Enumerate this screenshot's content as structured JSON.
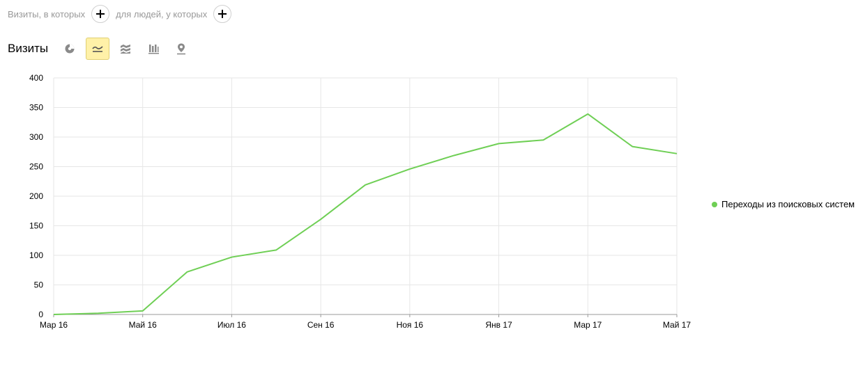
{
  "filters": {
    "visits_label": "Визиты, в которых",
    "people_label": "для людей, у которых"
  },
  "header": {
    "title": "Визиты",
    "views": [
      {
        "name": "pie-icon",
        "active": false
      },
      {
        "name": "line-chart-icon",
        "active": true
      },
      {
        "name": "area-chart-icon",
        "active": false
      },
      {
        "name": "bar-chart-icon",
        "active": false
      },
      {
        "name": "map-icon",
        "active": false
      }
    ]
  },
  "colors": {
    "series": "#6fcf55",
    "grid": "#e6e6e6",
    "active_view_bg": "#fff1a8"
  },
  "chart_data": {
    "type": "line",
    "title": "",
    "xlabel": "",
    "ylabel": "",
    "x": [
      "2016-03",
      "2016-04",
      "2016-05",
      "2016-06",
      "2016-07",
      "2016-08",
      "2016-09",
      "2016-10",
      "2016-11",
      "2016-12",
      "2017-01",
      "2017-02",
      "2017-03",
      "2017-04",
      "2017-05"
    ],
    "x_tick_labels": [
      "Мар 16",
      "Май 16",
      "Июл 16",
      "Сен 16",
      "Ноя 16",
      "Янв 17",
      "Мар 17",
      "Май 17"
    ],
    "ylim": [
      0,
      400
    ],
    "y_ticks": [
      0,
      50,
      100,
      150,
      200,
      250,
      300,
      350,
      400
    ],
    "grid": true,
    "legend_position": "right",
    "series": [
      {
        "name": "Переходы из поисковых систем",
        "color": "#6fcf55",
        "values": [
          0,
          2,
          6,
          72,
          97,
          109,
          161,
          219,
          246,
          269,
          289,
          295,
          339,
          284,
          272
        ]
      }
    ]
  }
}
